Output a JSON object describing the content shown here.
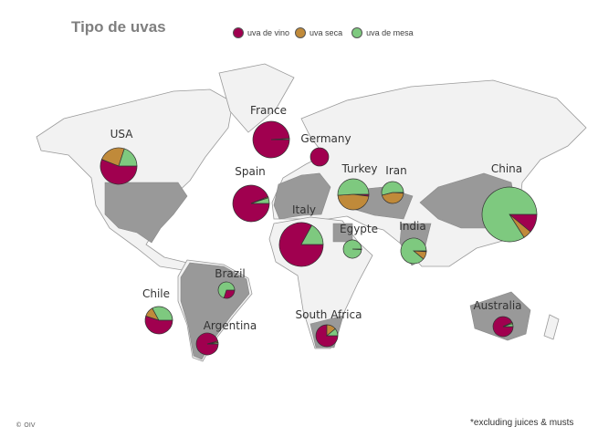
{
  "title": "Tipo de uvas",
  "legend": [
    {
      "label": "uva de vino",
      "color": "#a0004f"
    },
    {
      "label": "uva seca",
      "color": "#c08a3a"
    },
    {
      "label": "uva de mesa",
      "color": "#7ec97f"
    }
  ],
  "footnote": "*excluding juices & musts",
  "copyright": "© OIV",
  "colors": {
    "land": "#f2f2f2",
    "highlighted_land": "#999999",
    "border": "#9a9a9a"
  },
  "countries": [
    {
      "name": "USA",
      "shares_pct": {
        "vino": 56,
        "seca": 24,
        "mesa": 20
      }
    },
    {
      "name": "France",
      "shares_pct": {
        "vino": 99,
        "seca": 0,
        "mesa": 1
      }
    },
    {
      "name": "Germany",
      "shares_pct": {
        "vino": 100,
        "seca": 0,
        "mesa": 0
      }
    },
    {
      "name": "Spain",
      "shares_pct": {
        "vino": 94,
        "seca": 1,
        "mesa": 5
      }
    },
    {
      "name": "Italy",
      "shares_pct": {
        "vino": 83,
        "seca": 0,
        "mesa": 17
      }
    },
    {
      "name": "Turkey",
      "shares_pct": {
        "vino": 2,
        "seca": 47,
        "mesa": 51
      }
    },
    {
      "name": "Iran",
      "shares_pct": {
        "vino": 1,
        "seca": 45,
        "mesa": 54
      }
    },
    {
      "name": "Egypte",
      "shares_pct": {
        "vino": 1,
        "seca": 0,
        "mesa": 99
      }
    },
    {
      "name": "India",
      "shares_pct": {
        "vino": 1,
        "seca": 10,
        "mesa": 89
      }
    },
    {
      "name": "China",
      "shares_pct": {
        "vino": 11,
        "seca": 5,
        "mesa": 84
      }
    },
    {
      "name": "Brazil",
      "shares_pct": {
        "vino": 30,
        "seca": 0,
        "mesa": 70
      }
    },
    {
      "name": "Chile",
      "shares_pct": {
        "vino": 55,
        "seca": 12,
        "mesa": 33
      }
    },
    {
      "name": "Argentina",
      "shares_pct": {
        "vino": 96,
        "seca": 2,
        "mesa": 2
      }
    },
    {
      "name": "South Africa",
      "shares_pct": {
        "vino": 75,
        "seca": 14,
        "mesa": 11
      }
    },
    {
      "name": "Australia",
      "shares_pct": {
        "vino": 93,
        "seca": 2,
        "mesa": 5
      }
    }
  ]
}
